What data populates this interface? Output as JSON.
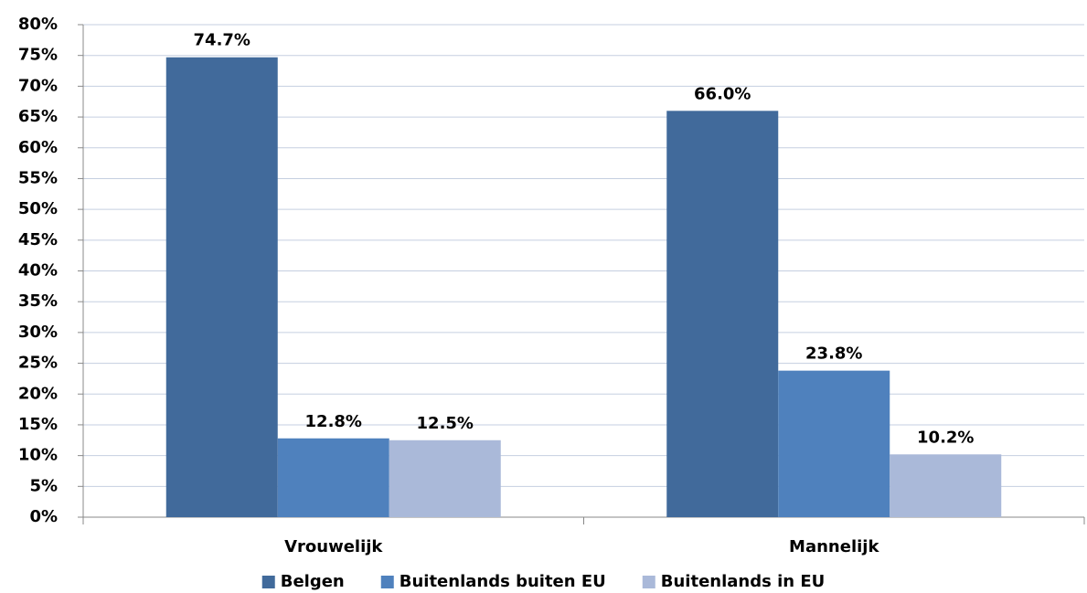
{
  "chart_data": {
    "type": "bar",
    "categories": [
      "Vrouwelijk",
      "Mannelijk"
    ],
    "series": [
      {
        "name": "Belgen",
        "color": "#416a9b",
        "values": [
          74.7,
          66.0
        ],
        "value_labels": [
          "74.7%",
          "66.0%"
        ]
      },
      {
        "name": "Buitenlands buiten EU",
        "color": "#4f81bd",
        "values": [
          12.8,
          23.8
        ],
        "value_labels": [
          "12.8%",
          "23.8%"
        ]
      },
      {
        "name": "Buitenlands in EU",
        "color": "#aab9d9",
        "values": [
          12.5,
          10.2
        ],
        "value_labels": [
          "12.5%",
          "10.2%"
        ]
      }
    ],
    "ylim": [
      0,
      80
    ],
    "yticks": [
      {
        "value": 0,
        "label": "0%"
      },
      {
        "value": 5,
        "label": "5%"
      },
      {
        "value": 10,
        "label": "10%"
      },
      {
        "value": 15,
        "label": "15%"
      },
      {
        "value": 20,
        "label": "20%"
      },
      {
        "value": 25,
        "label": "25%"
      },
      {
        "value": 30,
        "label": "30%"
      },
      {
        "value": 35,
        "label": "35%"
      },
      {
        "value": 40,
        "label": "40%"
      },
      {
        "value": 45,
        "label": "45%"
      },
      {
        "value": 50,
        "label": "50%"
      },
      {
        "value": 55,
        "label": "55%"
      },
      {
        "value": 60,
        "label": "60%"
      },
      {
        "value": 65,
        "label": "65%"
      },
      {
        "value": 70,
        "label": "70%"
      },
      {
        "value": 75,
        "label": "75%"
      },
      {
        "value": 80,
        "label": "80%"
      }
    ],
    "grid": true,
    "legend": "bottom"
  }
}
